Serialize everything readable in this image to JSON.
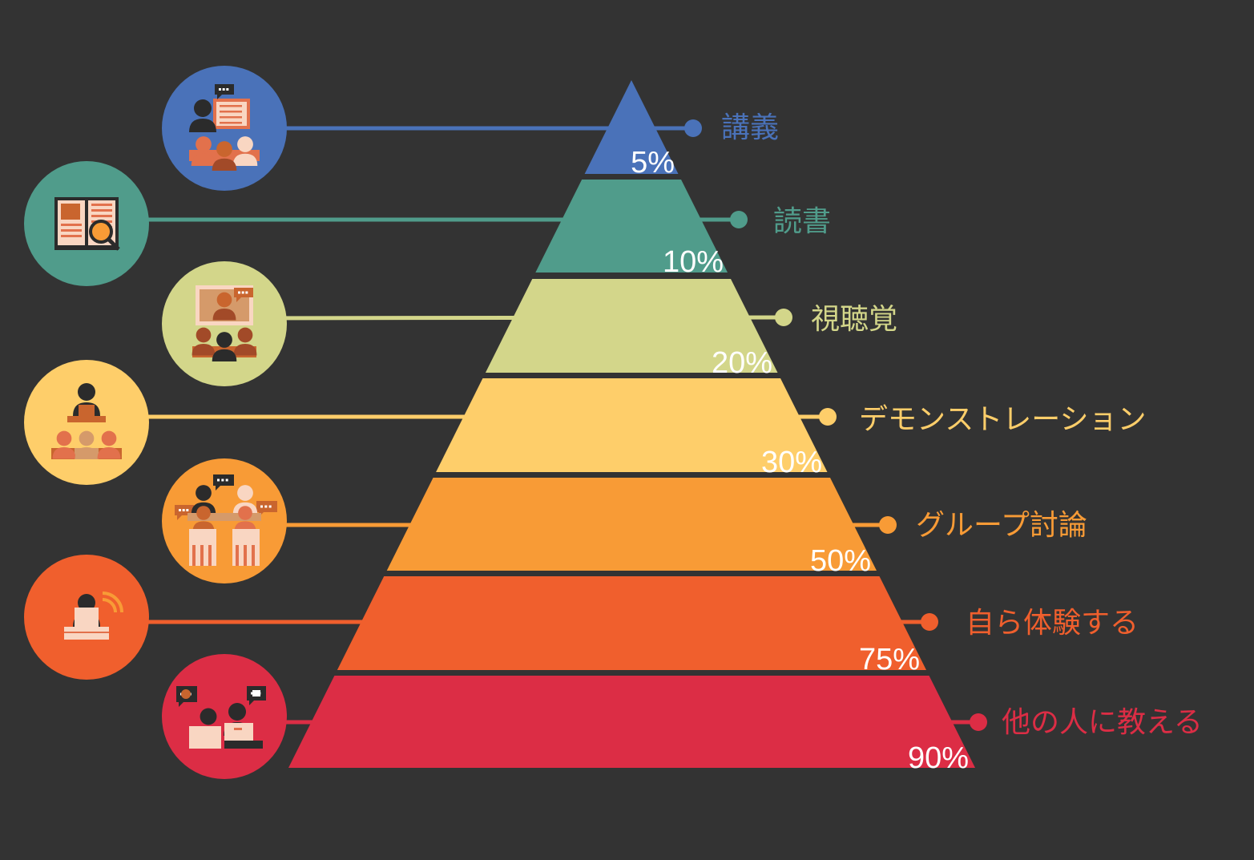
{
  "title": "",
  "background": "#333333",
  "levels": [
    {
      "id": "lecture",
      "label": "講義",
      "percent": "5%",
      "color": "#4a72b9",
      "icon": "lecture-icon"
    },
    {
      "id": "reading",
      "label": "読書",
      "percent": "10%",
      "color": "#509c8b",
      "icon": "reading-icon"
    },
    {
      "id": "audiovisual",
      "label": "視聴覚",
      "percent": "20%",
      "color": "#d3d68a",
      "icon": "audiovisual-icon"
    },
    {
      "id": "demonstration",
      "label": "デモンストレーション",
      "percent": "30%",
      "color": "#fece6a",
      "icon": "demonstration-icon"
    },
    {
      "id": "group-discussion",
      "label": "グループ討論",
      "percent": "50%",
      "color": "#f89b36",
      "icon": "group-discussion-icon"
    },
    {
      "id": "practice",
      "label": "自ら体験する",
      "percent": "75%",
      "color": "#f05f2d",
      "icon": "practice-by-doing-icon"
    },
    {
      "id": "teach-others",
      "label": "他の人に教える",
      "percent": "90%",
      "color": "#dc2d45",
      "icon": "teach-others-icon"
    }
  ]
}
